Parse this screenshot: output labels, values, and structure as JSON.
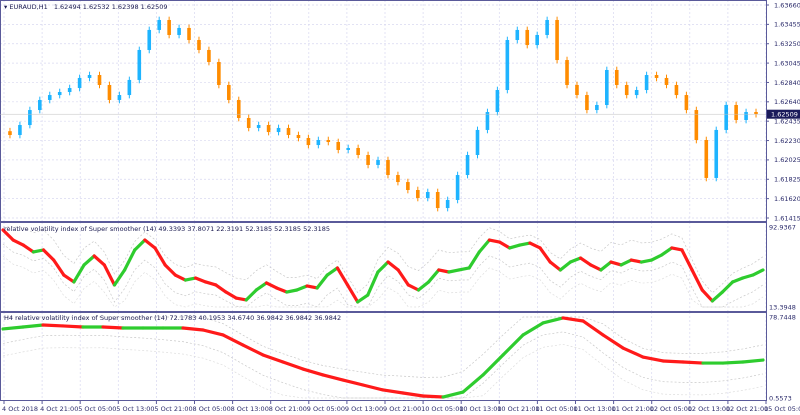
{
  "header": {
    "symbol": "EURAUD,H1",
    "ohlc": "1.62494 1.62532 1.62398 1.62509"
  },
  "colors": {
    "up_candle": "#1EB4FF",
    "down_candle": "#FF8C00",
    "rising_line": "#2ECC2E",
    "falling_line": "#FF1A1A",
    "grid": "#D8D8F0",
    "axis": "#5A5A9A",
    "price_marker_bg": "#1A1A5A"
  },
  "chart_data": [
    {
      "type": "candlestick",
      "title": "EURAUD,H1",
      "y_ticks": [
        "1.63660",
        "1.63455",
        "1.63250",
        "1.63045",
        "1.62840",
        "1.62640",
        "1.62435",
        "1.62230",
        "1.62025",
        "1.61825",
        "1.61620",
        "1.61415"
      ],
      "ylim": [
        1.61415,
        1.6366
      ],
      "current_price": "1.62509",
      "closes": [
        1.6229,
        1.62395,
        1.62553,
        1.62659,
        1.62711,
        1.62743,
        1.62785,
        1.62891,
        1.62922,
        1.62817,
        1.62659,
        1.62711,
        1.6287,
        1.63186,
        1.63397,
        1.63502,
        1.63344,
        1.63418,
        1.63291,
        1.63186,
        1.63059,
        1.62817,
        1.62659,
        1.62469,
        1.62364,
        1.62395,
        1.62321,
        1.62364,
        1.6229,
        1.62258,
        1.62184,
        1.62237,
        1.62216,
        1.62132,
        1.62153,
        1.62079,
        1.61974,
        1.62026,
        1.61868,
        1.61794,
        1.6171,
        1.61626,
        1.61689,
        1.6152,
        1.61605,
        1.61868,
        1.62079,
        1.62343,
        1.62532,
        1.62764,
        1.63291,
        1.63397,
        1.63238,
        1.63344,
        1.63502,
        1.6308,
        1.62817,
        1.62711,
        1.62553,
        1.62606,
        1.62975,
        1.62817,
        1.62711,
        1.62764,
        1.62922,
        1.62891,
        1.62817,
        1.62711,
        1.62553,
        1.62237,
        1.61837,
        1.62343,
        1.62606,
        1.62448,
        1.62532,
        1.62509
      ],
      "grid": true
    },
    {
      "type": "line",
      "title": "relative volatility index of Super smoother (14) 49.3393 37.8071 22.3191 52.3185 52.3185 52.3185",
      "y_ticks": [
        "92.9367",
        "13.3948"
      ],
      "ylim": [
        13.3948,
        92.9367
      ],
      "values": [
        90.0,
        80.0,
        75.0,
        68.1,
        70.1,
        60.1,
        45.2,
        38.3,
        55.2,
        64.1,
        55.2,
        35.3,
        50.2,
        70.1,
        80.0,
        72.1,
        55.2,
        45.2,
        40.2,
        42.2,
        38.3,
        35.3,
        28.3,
        22.3,
        20.4,
        30.3,
        37.3,
        32.3,
        28.3,
        30.3,
        34.3,
        32.3,
        45.2,
        52.2,
        35.3,
        18.4,
        25.3,
        48.2,
        58.1,
        50.2,
        35.3,
        30.3,
        38.3,
        50.2,
        48.2,
        50.2,
        52.2,
        68.1,
        80.0,
        78.0,
        72.1,
        75.0,
        77.0,
        72.1,
        58.1,
        50.2,
        58.1,
        62.1,
        55.2,
        50.2,
        58.1,
        55.2,
        60.1,
        58.1,
        60.1,
        65.1,
        72.1,
        70.1,
        50.2,
        30.3,
        19.4,
        28.3,
        38.3,
        42.2,
        45.2,
        50.2
      ]
    },
    {
      "type": "line",
      "title": "H4 relative volatility index of Super smoother (14) 72.1783 40.1953 34.6740 36.9842 36.9842 36.9842",
      "y_ticks": [
        "78.7448",
        "0.5573"
      ],
      "ylim": [
        0.5573,
        78.7448
      ],
      "values": [
        67.2,
        69.1,
        71.0,
        70.1,
        69.1,
        69.1,
        68.1,
        68.1,
        68.1,
        68.1,
        66.2,
        61.4,
        51.7,
        42.1,
        35.3,
        28.5,
        22.8,
        17.9,
        13.1,
        8.3,
        5.4,
        2.5,
        1.5,
        6.3,
        22.8,
        42.1,
        61.4,
        73.0,
        77.8,
        74.9,
        61.4,
        48.8,
        40.1,
        36.3,
        35.3,
        34.3,
        34.3,
        35.3,
        37.2
      ]
    }
  ],
  "time_axis": [
    "4 Oct 2018",
    "4 Oct 21:00",
    "5 Oct 05:00",
    "5 Oct 13:00",
    "5 Oct 21:00",
    "8 Oct 05:00",
    "8 Oct 13:00",
    "8 Oct 21:00",
    "9 Oct 05:00",
    "9 Oct 13:00",
    "9 Oct 21:00",
    "10 Oct 05:00",
    "10 Oct 13:00",
    "10 Oct 21:00",
    "11 Oct 05:00",
    "11 Oct 13:00",
    "11 Oct 21:00",
    "12 Oct 05:00",
    "12 Oct 13:00",
    "12 Oct 21:00",
    "15 Oct 05:00"
  ]
}
